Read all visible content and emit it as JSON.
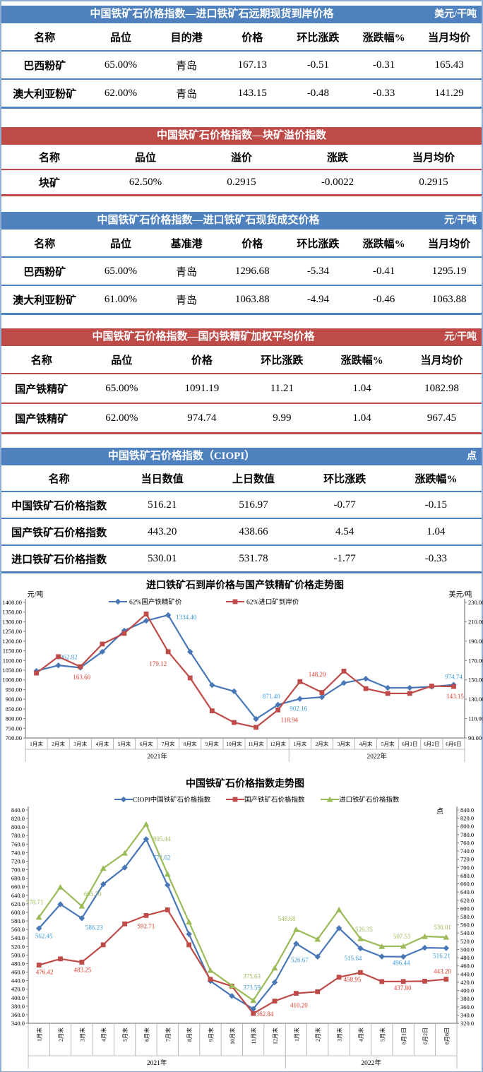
{
  "theme_colors": {
    "blue": "#4E81BD",
    "red": "#BE4B48",
    "sheet_border": "#8FAFD4"
  },
  "tables": [
    {
      "title": "中国铁矿石价格指数—进口铁矿石远期现货到岸价格",
      "unit": "美元/干吨",
      "theme": "blue",
      "columns": [
        "名称",
        "品位",
        "目的港",
        "价格",
        "环比涨跌",
        "涨跌幅%",
        "当月均价"
      ],
      "rows": [
        [
          "巴西粉矿",
          "65.00%",
          "青岛",
          "167.13",
          "-0.51",
          "-0.31",
          "165.43"
        ],
        [
          "澳大利亚粉矿",
          "62.00%",
          "青岛",
          "143.15",
          "-0.48",
          "-0.33",
          "141.29"
        ]
      ]
    },
    {
      "title": "中国铁矿石价格指数—块矿溢价指数",
      "unit": "",
      "theme": "red",
      "columns": [
        "名称",
        "品位",
        "溢价",
        "涨跌",
        "当月均价"
      ],
      "rows": [
        [
          "块矿",
          "62.50%",
          "0.2915",
          "-0.0022",
          "0.2915"
        ]
      ]
    },
    {
      "title": "中国铁矿石价格指数—进口铁矿石现货成交价格",
      "unit": "元/干吨",
      "theme": "blue",
      "columns": [
        "名称",
        "品位",
        "基准港",
        "价格",
        "环比涨跌",
        "涨跌幅%",
        "当月均价"
      ],
      "rows": [
        [
          "巴西粉矿",
          "65.00%",
          "青岛",
          "1296.68",
          "-5.34",
          "-0.41",
          "1295.19"
        ],
        [
          "澳大利亚粉矿",
          "61.00%",
          "青岛",
          "1063.88",
          "-4.94",
          "-0.46",
          "1063.88"
        ]
      ]
    },
    {
      "title": "中国铁矿石价格指数—国内铁精矿加权平均价格",
      "unit": "元/干吨",
      "theme": "red",
      "columns": [
        "名称",
        "品位",
        "价格",
        "环比涨跌",
        "涨跌幅%",
        "当月均价"
      ],
      "rows": [
        [
          "国产铁精矿",
          "65.00%",
          "1091.19",
          "11.21",
          "1.04",
          "1082.98"
        ],
        [
          "国产铁精矿",
          "62.00%",
          "974.74",
          "9.99",
          "1.04",
          "967.45"
        ]
      ]
    },
    {
      "title": "中国铁矿石价格指数（CIOPI）",
      "unit": "点",
      "theme": "blue",
      "columns": [
        "名称",
        "当日数值",
        "上日数值",
        "环比涨跌",
        "涨跌幅%"
      ],
      "rows": [
        [
          "中国铁矿石价格指数",
          "516.21",
          "516.97",
          "-0.77",
          "-0.15"
        ],
        [
          "国产铁矿石价格指数",
          "443.20",
          "438.66",
          "4.54",
          "1.04"
        ],
        [
          "进口铁矿石价格指数",
          "530.01",
          "531.78",
          "-1.77",
          "-0.33"
        ]
      ]
    }
  ],
  "chart_data": [
    {
      "name": "import-vs-domestic-price-trend",
      "type": "line",
      "title": "进口铁矿石到岸价格与国产铁精矿价格走势图",
      "legend_position": "top",
      "gridlines": false,
      "left_axis": {
        "title": "元/吨",
        "min": 700,
        "max": 1400,
        "step": 50,
        "decimals": 2
      },
      "right_axis": {
        "title": "美元/吨",
        "min": 90,
        "max": 230,
        "step": 20,
        "decimals": 2
      },
      "categories": [
        "1月末",
        "2月末",
        "3月末",
        "4月末",
        "5月末",
        "6月末",
        "7月末",
        "8月末",
        "9月末",
        "10月末",
        "11月末",
        "12月末",
        "1月末",
        "2月末",
        "3月末",
        "4月末",
        "5月末",
        "6月1日",
        "6月2日",
        "6月6日"
      ],
      "year_groups": [
        {
          "label": "2021年",
          "span": 12
        },
        {
          "label": "2022年",
          "span": 8
        }
      ],
      "series": [
        {
          "name": "62%国产铁精矿价",
          "axis": "left",
          "marker": "diamond",
          "color": "#4877B8",
          "label_color": "#3F9BD8",
          "values": [
            1046,
            1075,
            1062.82,
            1145,
            1254,
            1305,
            1334.4,
            1145,
            973,
            941,
            798,
            871.4,
            902.16,
            911,
            984,
            1006,
            959,
            959,
            964.75,
            974.74
          ],
          "point_labels": {
            "2": "1062.82",
            "6": "1334.40",
            "11": "871.40",
            "12": "902.16",
            "19": "974.74"
          }
        },
        {
          "name": "62%进口矿到岸价",
          "axis": "right",
          "marker": "square",
          "color": "#BE4B48",
          "label_color": "#E23B2E",
          "values": [
            157,
            174,
            163.6,
            187,
            198,
            218,
            179.12,
            152,
            118,
            106,
            101,
            118.94,
            148.2,
            137,
            159,
            141,
            136,
            136,
            143.63,
            143.15
          ],
          "point_labels": {
            "2": "163.60",
            "6": "179.12",
            "11": "118.94",
            "12": "148.20",
            "19": "143.15"
          }
        }
      ]
    },
    {
      "name": "ciopi-index-trend",
      "type": "line",
      "title": "中国铁矿石价格指数走势图",
      "legend_position": "top",
      "gridlines": false,
      "left_axis": {
        "title": "",
        "min": 340,
        "max": 840,
        "step": 20,
        "decimals": 1
      },
      "right_axis": {
        "title": "点",
        "min": 320,
        "max": 840,
        "step": 20,
        "decimals": 1
      },
      "categories": [
        "1月末",
        "2月末",
        "3月末",
        "4月末",
        "5月末",
        "6月末",
        "7月末",
        "8月末",
        "9月末",
        "10月末",
        "11月末",
        "12月末",
        "1月末",
        "2月末",
        "3月末",
        "4月末",
        "5月末",
        "6月1日",
        "6月2日",
        "6月6日"
      ],
      "year_groups": [
        {
          "label": "2021年",
          "span": 12
        },
        {
          "label": "2022年",
          "span": 8
        }
      ],
      "series": [
        {
          "name": "CIOPI中国铁矿石价格指数",
          "axis": "left",
          "marker": "diamond",
          "color": "#4877B8",
          "label_color": "#3F9BD8",
          "values": [
            562.45,
            619,
            586.23,
            666,
            705,
            771.62,
            664,
            549,
            439,
            404,
            373.59,
            436,
            526.67,
            496,
            563,
            515.64,
            496.44,
            496,
            516.97,
            516.21
          ],
          "point_labels": {
            "0": "562.45",
            "2": "586.23",
            "5": "771.62",
            "10": "373.59",
            "12": "526.67",
            "15": "515.64",
            "16": "496.44",
            "19": "516.21"
          }
        },
        {
          "name": "国产铁矿石价格指数",
          "axis": "left",
          "marker": "square",
          "color": "#BE4B48",
          "label_color": "#E23B2E",
          "values": [
            476.42,
            491,
            483.25,
            524,
            573,
            592.71,
            606,
            524,
            443,
            427,
            362.84,
            392,
            410.2,
            414,
            448,
            458.95,
            437.8,
            438,
            438.66,
            443.2
          ],
          "point_labels": {
            "0": "476.42",
            "2": "483.25",
            "5": "592.71",
            "10": "362.84",
            "12": "410.20",
            "15": "458.95",
            "16": "437.80",
            "19": "443.20"
          }
        },
        {
          "name": "进口铁矿石价格指数",
          "axis": "right",
          "marker": "triangle",
          "color": "#9BBB59",
          "label_color": "#9BBB59",
          "values": [
            578.71,
            652,
            605.7,
            698,
            735,
            805.44,
            684,
            567,
            449,
            412,
            375.63,
            455,
            548.68,
            525,
            597,
            526.35,
            507.53,
            508,
            531.78,
            530.01
          ],
          "point_labels": {
            "0": "578.71",
            "2": "605.70",
            "5": "805.44",
            "10": "375.63",
            "12": "548.68",
            "15": "526.35",
            "16": "507.53",
            "19": "530.01"
          }
        }
      ]
    }
  ]
}
